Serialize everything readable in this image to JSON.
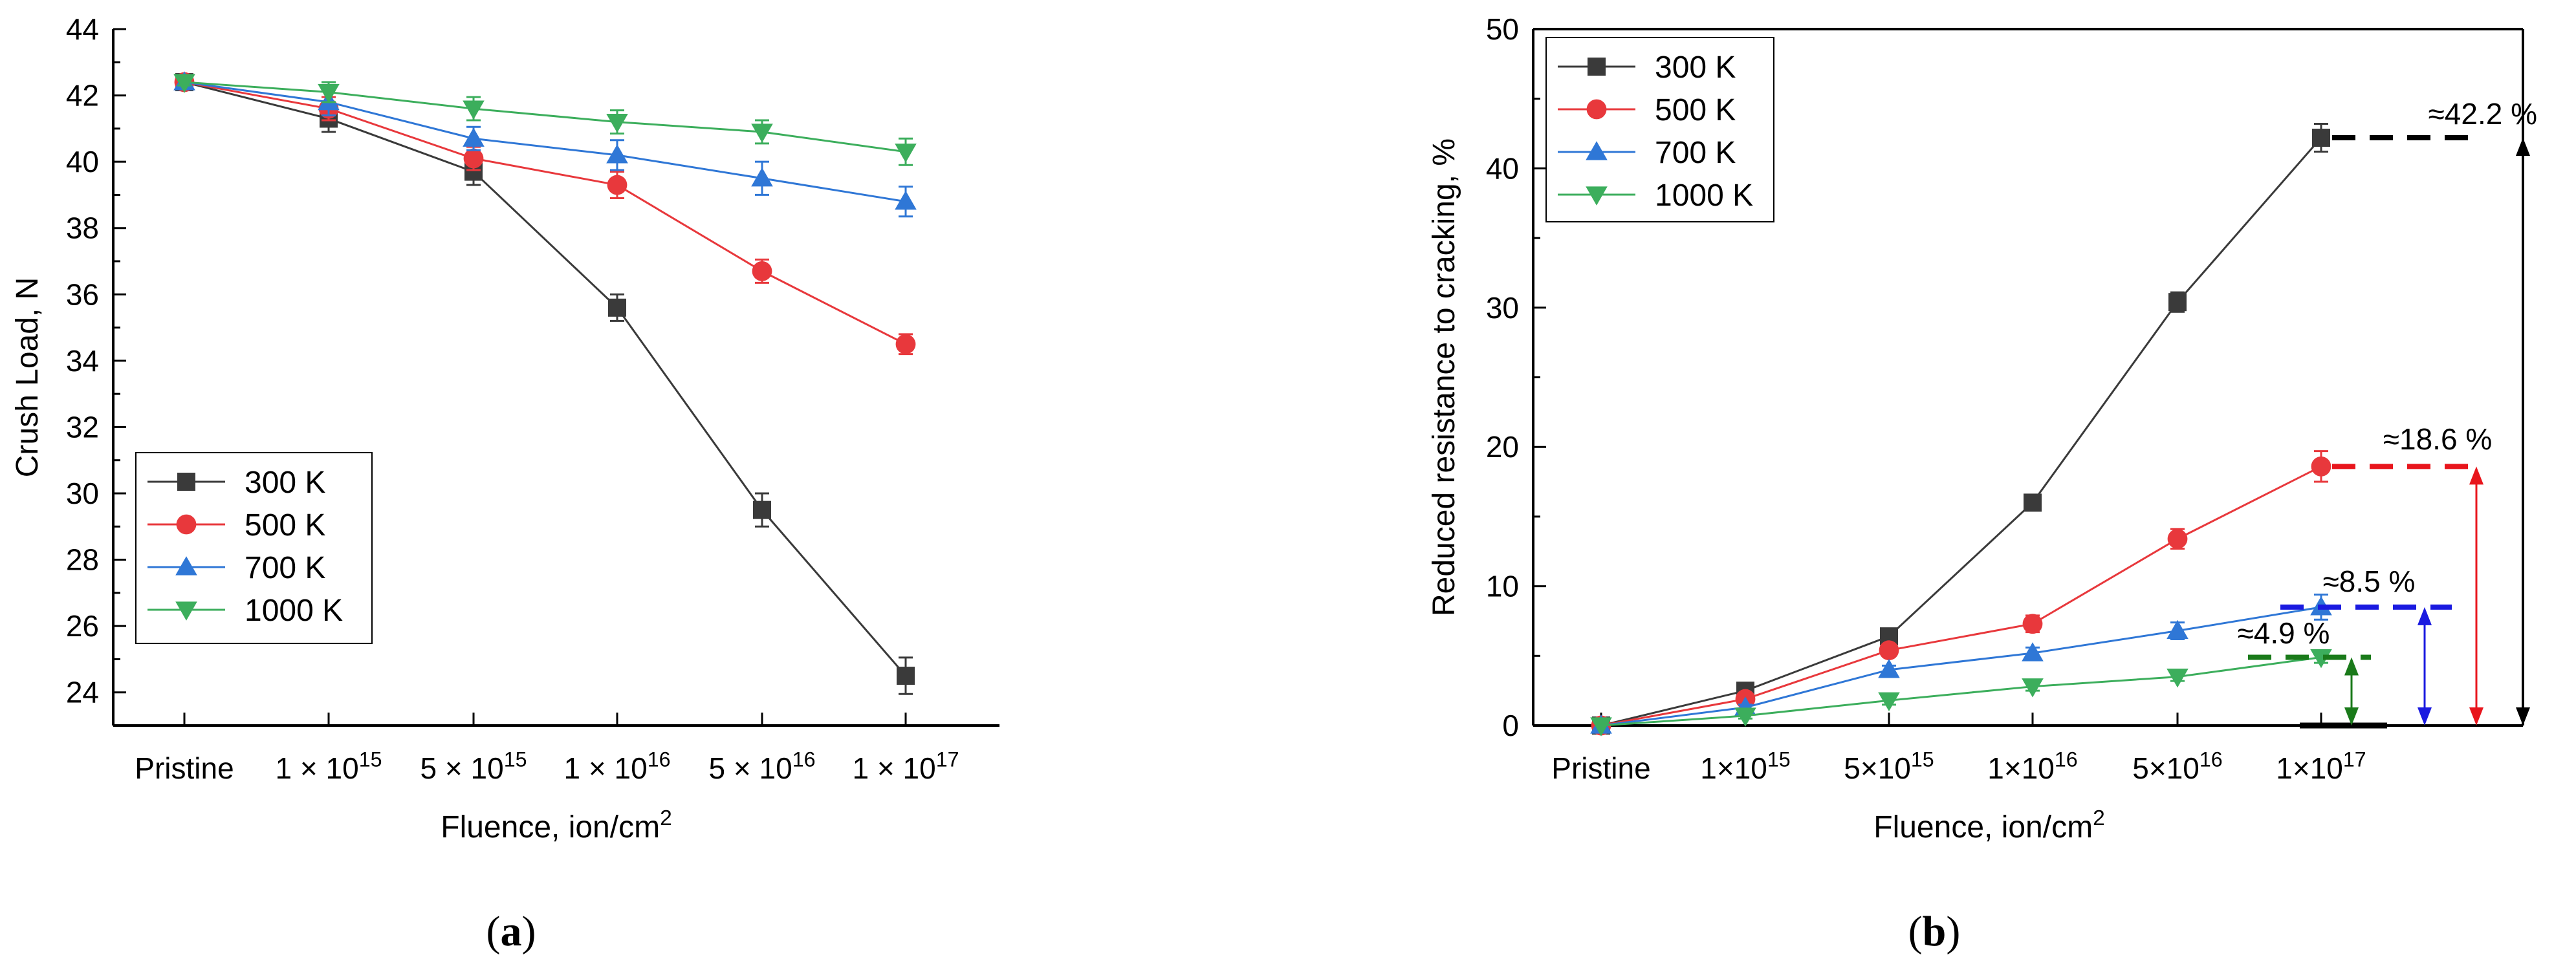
{
  "chart_data": [
    {
      "type": "line",
      "panel_label": "(a)",
      "panel_label_letter": "a",
      "xlabel": "Fluence, ion/cm",
      "xlabel_sup": "2",
      "ylabel": "Crush Load, N",
      "ylim": [
        23,
        44
      ],
      "yticks": [
        24,
        26,
        28,
        30,
        32,
        34,
        36,
        38,
        40,
        42,
        44
      ],
      "categories": [
        {
          "base": "Pristine",
          "sup": ""
        },
        {
          "base": "1 × 10",
          "sup": "15"
        },
        {
          "base": "5 × 10",
          "sup": "15"
        },
        {
          "base": "1 × 10",
          "sup": "16"
        },
        {
          "base": "5 × 10",
          "sup": "16"
        },
        {
          "base": "1 × 10",
          "sup": "17"
        }
      ],
      "legend_position": "bottom-left",
      "series": [
        {
          "name": "300 K",
          "color": "#3a3a3a",
          "marker": "square",
          "values": [
            42.4,
            41.3,
            39.7,
            35.6,
            29.5,
            24.5
          ],
          "errors": [
            0.1,
            0.4,
            0.4,
            0.4,
            0.5,
            0.55
          ]
        },
        {
          "name": "500 K",
          "color": "#e8383c",
          "marker": "circle",
          "values": [
            42.4,
            41.6,
            40.1,
            39.3,
            36.7,
            34.5
          ],
          "errors": [
            0.1,
            0.35,
            0.35,
            0.4,
            0.35,
            0.3
          ]
        },
        {
          "name": "700 K",
          "color": "#2f77d6",
          "marker": "triangle-up",
          "values": [
            42.4,
            41.8,
            40.7,
            40.2,
            39.5,
            38.8
          ],
          "errors": [
            0.1,
            0.4,
            0.35,
            0.45,
            0.5,
            0.45
          ]
        },
        {
          "name": "1000 K",
          "color": "#3cae5c",
          "marker": "triangle-down",
          "values": [
            42.4,
            42.1,
            41.6,
            41.2,
            40.9,
            40.3
          ],
          "errors": [
            0.1,
            0.3,
            0.35,
            0.35,
            0.35,
            0.4
          ]
        }
      ]
    },
    {
      "type": "line",
      "panel_label": "(b)",
      "panel_label_letter": "b",
      "xlabel": "Fluence, ion/cm",
      "xlabel_sup": "2",
      "ylabel": "Reduced resistance to cracking, %",
      "ylim": [
        0,
        50
      ],
      "yticks": [
        0,
        10,
        20,
        30,
        40,
        50
      ],
      "categories": [
        {
          "base": "Pristine",
          "sup": ""
        },
        {
          "base": "1×10",
          "sup": "15"
        },
        {
          "base": "5×10",
          "sup": "15"
        },
        {
          "base": "1×10",
          "sup": "16"
        },
        {
          "base": "5×10",
          "sup": "16"
        },
        {
          "base": "1×10",
          "sup": "17"
        }
      ],
      "legend_position": "top-left",
      "series": [
        {
          "name": "300 K",
          "color": "#3a3a3a",
          "marker": "square",
          "values": [
            0,
            2.5,
            6.4,
            16.0,
            30.4,
            42.2
          ],
          "errors": [
            0,
            0.3,
            0.4,
            0.4,
            0.7,
            1.0
          ]
        },
        {
          "name": "500 K",
          "color": "#e8383c",
          "marker": "circle",
          "values": [
            0,
            1.9,
            5.4,
            7.3,
            13.4,
            18.6
          ],
          "errors": [
            0,
            0.3,
            0.4,
            0.6,
            0.7,
            1.1
          ]
        },
        {
          "name": "700 K",
          "color": "#2f77d6",
          "marker": "triangle-up",
          "values": [
            0,
            1.3,
            4.0,
            5.2,
            6.8,
            8.5
          ],
          "errors": [
            0,
            0.2,
            0.3,
            0.4,
            0.6,
            0.9
          ]
        },
        {
          "name": "1000 K",
          "color": "#3cae5c",
          "marker": "triangle-down",
          "values": [
            0,
            0.7,
            1.8,
            2.8,
            3.5,
            4.9
          ],
          "errors": [
            0,
            0.2,
            0.3,
            0.3,
            0.3,
            0.4
          ]
        }
      ],
      "annotations": [
        {
          "text": "≈42.2 %",
          "value": 42.2,
          "color": "#000000"
        },
        {
          "text": "≈18.6 %",
          "value": 18.6,
          "color": "#e8151c"
        },
        {
          "text": "≈8.5 %",
          "value": 8.5,
          "color": "#1a1ae0"
        },
        {
          "text": "≈4.9 %",
          "value": 4.9,
          "color": "#1a7a1a"
        }
      ]
    }
  ]
}
